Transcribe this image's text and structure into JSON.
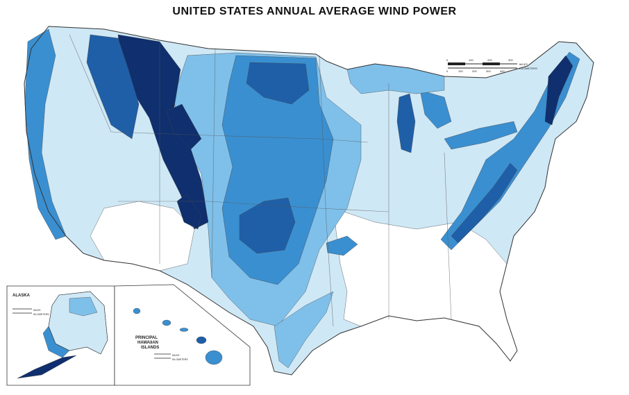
{
  "title": "UNITED STATES ANNUAL AVERAGE WIND POWER",
  "colors": {
    "class1": "#ffffff",
    "class2": "#cfe8f6",
    "class3": "#7fc0ea",
    "class4": "#3a8fd0",
    "class5": "#1f5fa8",
    "class6": "#0f2f6e",
    "boundary": "#444444"
  },
  "scale": {
    "miles_ticks": [
      "0",
      "100",
      "200",
      "300"
    ],
    "miles_label": "MILES",
    "km_ticks": [
      "0",
      "100",
      "200",
      "300",
      "400"
    ],
    "km_label": "KILOMETERS"
  },
  "alaska": {
    "label": "ALASKA",
    "miles_label": "MILES",
    "km_label": "KILOMETERS"
  },
  "hawaii": {
    "label_line1": "PRINCIPAL",
    "label_line2": "HAWAIIAN",
    "label_line3": "ISLANDS",
    "miles_label": "MILES",
    "km_label": "KILOMETERS"
  }
}
